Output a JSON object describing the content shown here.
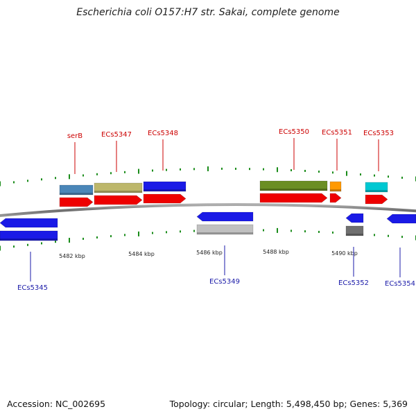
{
  "title": "Escherichia coli O157:H7 str. Sakai, complete genome",
  "footer": {
    "accession": "Accession: NC_002695",
    "topology": "Topology: circular; Length: 5,498,450 bp; Genes: 5,369"
  },
  "scale_labels": [
    "5482 kbp",
    "5484 kbp",
    "5486 kbp",
    "5488 kbp",
    "5490 kbp"
  ],
  "colors": {
    "forward_label": "#cc0000",
    "reverse_label": "#1a1aa8",
    "cds": "#ee0000",
    "reverse_cds": "#1a1ae6",
    "tick": "#1a8c1a",
    "backbone": "#808080"
  },
  "forward_genes": [
    {
      "label": "serB",
      "cog_color": "#4a86b8"
    },
    {
      "label": "ECs5347",
      "cog_color": "#bdb76b"
    },
    {
      "label": "ECs5348",
      "cog_color": "#1a1ae6"
    },
    {
      "label": "ECs5350",
      "cog_color": "#6b8e23"
    },
    {
      "label": "ECs5351",
      "cog_color": "#ff9900"
    },
    {
      "label": "ECs5353",
      "cog_color": "#00c8d2"
    }
  ],
  "reverse_genes": [
    {
      "label": "ECs5345",
      "cog_color": "#1a1ae6"
    },
    {
      "label": "ECs5349",
      "cog_color": "#c0c0c0"
    },
    {
      "label": "ECs5352",
      "cog_color": "#707070"
    },
    {
      "label": "ECs5354",
      "cog_color": "#1a1ae6"
    }
  ]
}
